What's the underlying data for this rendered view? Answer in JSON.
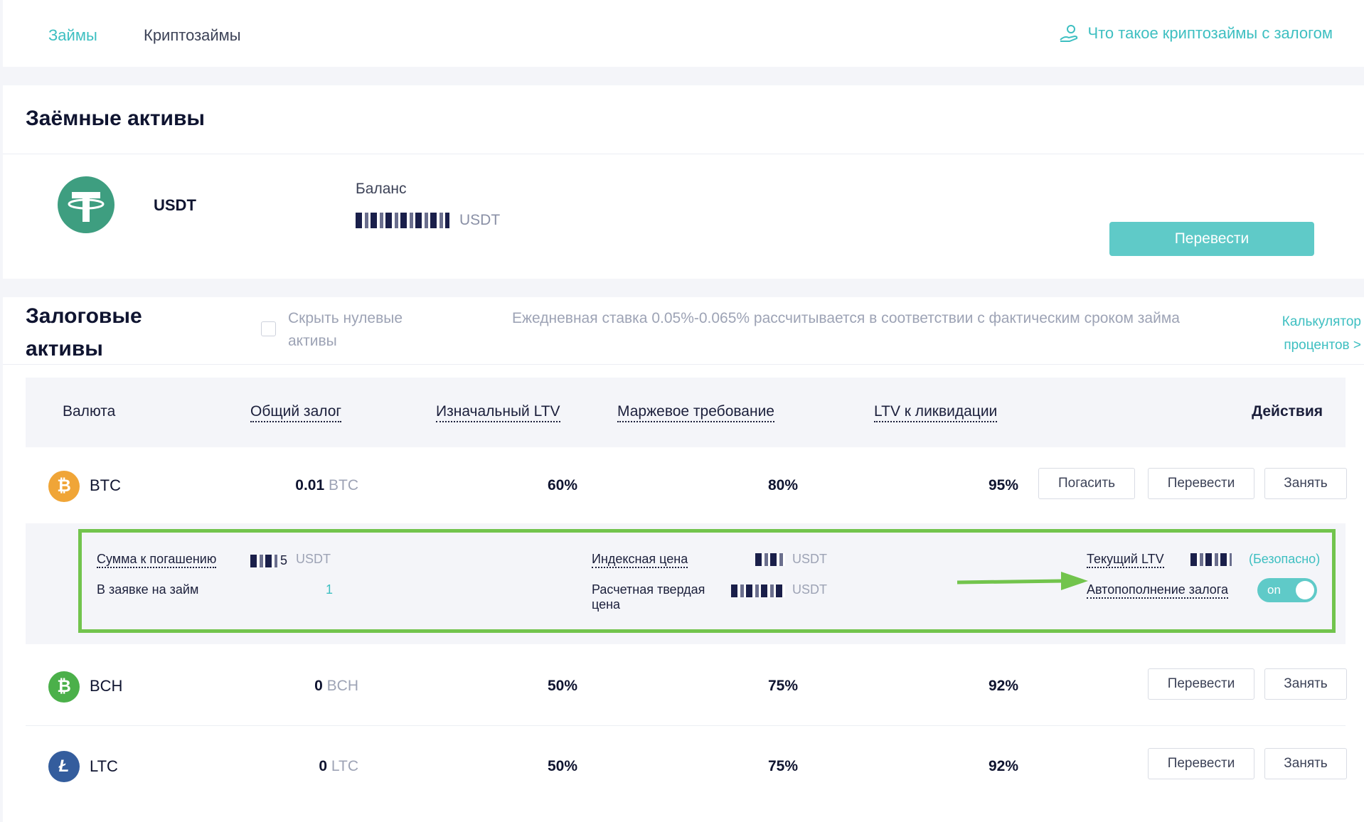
{
  "nav": {
    "tab_loans": "Займы",
    "tab_crypto_loans": "Криптозаймы",
    "help_link": "Что такое криптозаймы с залогом"
  },
  "borrowed": {
    "title": "Заёмные активы",
    "asset": "USDT",
    "balance_label": "Баланс",
    "balance_unit": "USDT",
    "transfer_button": "Перевести"
  },
  "collateral": {
    "title_line1": "Залоговые",
    "title_line2": "активы",
    "hide_zero_line1": "Скрыть нулевые",
    "hide_zero_line2": "активы",
    "hide_zero_checked": false,
    "rate_note": "Ежедневная ставка 0.05%-0.065% рассчитывается в соответствии с фактическим сроком займа",
    "calc_link_line1": "Калькулятор",
    "calc_link_line2": "процентов  >",
    "columns": {
      "currency": "Валюта",
      "total_collateral": "Общий залог",
      "initial_ltv": "Изначальный LTV",
      "margin_req": "Маржевое требование",
      "liq_ltv": "LTV к ликвидации",
      "actions": "Действия"
    },
    "rows": [
      {
        "symbol": "BTC",
        "amount": "0.01",
        "unit": "BTC",
        "initial_ltv": "60%",
        "margin": "80%",
        "liq_ltv": "95%",
        "btn_repay": "Погасить",
        "btn_transfer": "Перевести",
        "btn_borrow": "Занять",
        "icon": "bitcoin-icon",
        "color": "#f0a537"
      },
      {
        "symbol": "BCH",
        "amount": "0",
        "unit": "BCH",
        "initial_ltv": "50%",
        "margin": "75%",
        "liq_ltv": "92%",
        "btn_transfer": "Перевести",
        "btn_borrow": "Занять",
        "icon": "bitcoin-cash-icon",
        "color": "#4bb04a"
      },
      {
        "symbol": "LTC",
        "amount": "0",
        "unit": "LTC",
        "initial_ltv": "50%",
        "margin": "75%",
        "liq_ltv": "92%",
        "btn_transfer": "Перевести",
        "btn_borrow": "Занять",
        "icon": "litecoin-icon",
        "color": "#345d9d"
      }
    ],
    "details": {
      "repay_label": "Сумма к погашению",
      "repay_digit": "5",
      "repay_unit": "USDT",
      "pending_label": "В заявке на займ",
      "pending_value": "1",
      "index_label": "Индексная цена",
      "index_unit": "USDT",
      "settle_label_line1": "Расчетная твердая",
      "settle_label_line2": "цена",
      "settle_unit": "USDT",
      "current_ltv_label": "Текущий LTV",
      "current_ltv_status": "(Безопасно)",
      "auto_topup_label": "Автопополнение залога",
      "auto_topup_state": "on"
    }
  }
}
